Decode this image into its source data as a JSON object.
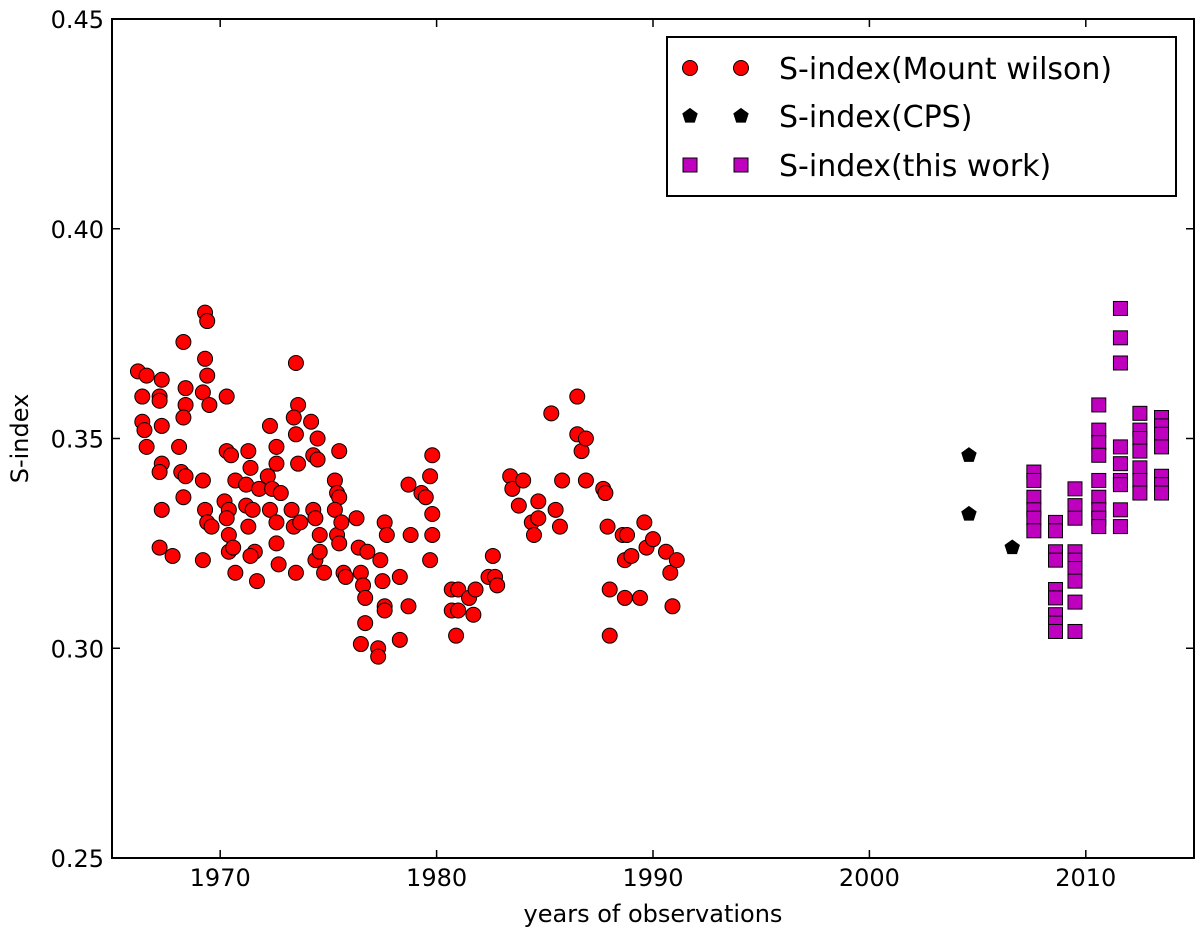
{
  "chart_data": {
    "type": "scatter",
    "title": "",
    "xlabel": "years of observations",
    "ylabel": "S-index",
    "xlim": [
      1965,
      2015
    ],
    "ylim": [
      0.25,
      0.45
    ],
    "xticks": [
      1970,
      1980,
      1990,
      2000,
      2010
    ],
    "xtick_labels": [
      "1970",
      "1980",
      "1990",
      "2000",
      "2010"
    ],
    "yticks": [
      0.25,
      0.3,
      0.35,
      0.4,
      0.45
    ],
    "ytick_labels": [
      "0.25",
      "0.30",
      "0.35",
      "0.40",
      "0.45"
    ],
    "grid": false,
    "legend_position": "top-right",
    "series": [
      {
        "name": "S-index(Mount wilson)",
        "marker": "circle",
        "color": "#ff0000",
        "points": [
          [
            1966.2,
            0.366
          ],
          [
            1966.4,
            0.36
          ],
          [
            1966.6,
            0.365
          ],
          [
            1966.4,
            0.354
          ],
          [
            1966.5,
            0.352
          ],
          [
            1966.6,
            0.348
          ],
          [
            1967.2,
            0.36
          ],
          [
            1967.2,
            0.359
          ],
          [
            1967.3,
            0.364
          ],
          [
            1967.3,
            0.353
          ],
          [
            1967.3,
            0.344
          ],
          [
            1967.2,
            0.342
          ],
          [
            1967.3,
            0.333
          ],
          [
            1967.2,
            0.324
          ],
          [
            1967.8,
            0.322
          ],
          [
            1968.1,
            0.348
          ],
          [
            1968.2,
            0.342
          ],
          [
            1968.4,
            0.341
          ],
          [
            1968.3,
            0.373
          ],
          [
            1968.4,
            0.362
          ],
          [
            1968.4,
            0.358
          ],
          [
            1968.3,
            0.355
          ],
          [
            1968.3,
            0.336
          ],
          [
            1969.2,
            0.34
          ],
          [
            1969.3,
            0.38
          ],
          [
            1969.4,
            0.378
          ],
          [
            1969.3,
            0.369
          ],
          [
            1969.4,
            0.365
          ],
          [
            1969.2,
            0.361
          ],
          [
            1969.5,
            0.358
          ],
          [
            1969.3,
            0.333
          ],
          [
            1969.4,
            0.33
          ],
          [
            1969.6,
            0.329
          ],
          [
            1969.2,
            0.321
          ],
          [
            1970.3,
            0.36
          ],
          [
            1970.3,
            0.347
          ],
          [
            1970.5,
            0.346
          ],
          [
            1970.2,
            0.335
          ],
          [
            1970.4,
            0.333
          ],
          [
            1970.3,
            0.331
          ],
          [
            1970.4,
            0.327
          ],
          [
            1970.4,
            0.323
          ],
          [
            1970.6,
            0.324
          ],
          [
            1970.7,
            0.318
          ],
          [
            1970.7,
            0.34
          ],
          [
            1971.3,
            0.347
          ],
          [
            1971.4,
            0.343
          ],
          [
            1971.2,
            0.339
          ],
          [
            1971.2,
            0.334
          ],
          [
            1971.3,
            0.329
          ],
          [
            1971.5,
            0.333
          ],
          [
            1971.6,
            0.323
          ],
          [
            1971.4,
            0.322
          ],
          [
            1971.8,
            0.338
          ],
          [
            1971.7,
            0.316
          ],
          [
            1972.3,
            0.353
          ],
          [
            1972.2,
            0.341
          ],
          [
            1972.4,
            0.338
          ],
          [
            1972.3,
            0.333
          ],
          [
            1972.6,
            0.348
          ],
          [
            1972.6,
            0.344
          ],
          [
            1972.6,
            0.33
          ],
          [
            1972.6,
            0.325
          ],
          [
            1972.7,
            0.32
          ],
          [
            1972.8,
            0.337
          ],
          [
            1973.3,
            0.333
          ],
          [
            1973.4,
            0.329
          ],
          [
            1973.5,
            0.351
          ],
          [
            1973.6,
            0.344
          ],
          [
            1973.5,
            0.368
          ],
          [
            1973.6,
            0.358
          ],
          [
            1973.4,
            0.355
          ],
          [
            1973.5,
            0.318
          ],
          [
            1973.7,
            0.33
          ],
          [
            1974.2,
            0.354
          ],
          [
            1974.3,
            0.346
          ],
          [
            1974.3,
            0.333
          ],
          [
            1974.4,
            0.331
          ],
          [
            1974.5,
            0.35
          ],
          [
            1974.5,
            0.345
          ],
          [
            1974.6,
            0.327
          ],
          [
            1974.4,
            0.321
          ],
          [
            1974.6,
            0.323
          ],
          [
            1974.8,
            0.318
          ],
          [
            1975.3,
            0.34
          ],
          [
            1975.4,
            0.337
          ],
          [
            1975.5,
            0.336
          ],
          [
            1975.3,
            0.333
          ],
          [
            1975.4,
            0.327
          ],
          [
            1975.6,
            0.33
          ],
          [
            1975.5,
            0.325
          ],
          [
            1975.5,
            0.347
          ],
          [
            1975.7,
            0.318
          ],
          [
            1975.8,
            0.317
          ],
          [
            1976.3,
            0.331
          ],
          [
            1976.4,
            0.324
          ],
          [
            1976.5,
            0.318
          ],
          [
            1976.6,
            0.315
          ],
          [
            1976.7,
            0.312
          ],
          [
            1976.5,
            0.301
          ],
          [
            1976.7,
            0.306
          ],
          [
            1976.8,
            0.323
          ],
          [
            1977.3,
            0.3
          ],
          [
            1977.3,
            0.298
          ],
          [
            1977.4,
            0.321
          ],
          [
            1977.5,
            0.316
          ],
          [
            1977.6,
            0.33
          ],
          [
            1977.6,
            0.31
          ],
          [
            1977.7,
            0.327
          ],
          [
            1977.6,
            0.309
          ],
          [
            1978.3,
            0.302
          ],
          [
            1978.3,
            0.317
          ],
          [
            1978.7,
            0.339
          ],
          [
            1978.8,
            0.327
          ],
          [
            1978.7,
            0.31
          ],
          [
            1979.3,
            0.337
          ],
          [
            1979.5,
            0.336
          ],
          [
            1979.8,
            0.346
          ],
          [
            1979.7,
            0.341
          ],
          [
            1979.8,
            0.332
          ],
          [
            1979.8,
            0.327
          ],
          [
            1979.7,
            0.321
          ],
          [
            1980.7,
            0.314
          ],
          [
            1980.7,
            0.309
          ],
          [
            1980.9,
            0.303
          ],
          [
            1981.0,
            0.309
          ],
          [
            1981.0,
            0.314
          ],
          [
            1981.5,
            0.312
          ],
          [
            1981.8,
            0.314
          ],
          [
            1981.7,
            0.308
          ],
          [
            1982.4,
            0.317
          ],
          [
            1982.6,
            0.322
          ],
          [
            1982.7,
            0.317
          ],
          [
            1982.8,
            0.315
          ],
          [
            1983.4,
            0.341
          ],
          [
            1983.5,
            0.338
          ],
          [
            1983.8,
            0.334
          ],
          [
            1984.0,
            0.34
          ],
          [
            1984.4,
            0.33
          ],
          [
            1984.5,
            0.327
          ],
          [
            1984.7,
            0.331
          ],
          [
            1984.7,
            0.335
          ],
          [
            1985.3,
            0.356
          ],
          [
            1985.5,
            0.333
          ],
          [
            1985.7,
            0.329
          ],
          [
            1985.8,
            0.34
          ],
          [
            1986.5,
            0.36
          ],
          [
            1986.5,
            0.351
          ],
          [
            1986.7,
            0.347
          ],
          [
            1986.9,
            0.35
          ],
          [
            1986.9,
            0.34
          ],
          [
            1987.7,
            0.338
          ],
          [
            1987.8,
            0.337
          ],
          [
            1987.9,
            0.329
          ],
          [
            1988.0,
            0.314
          ],
          [
            1988.0,
            0.303
          ],
          [
            1988.6,
            0.327
          ],
          [
            1988.7,
            0.312
          ],
          [
            1988.7,
            0.321
          ],
          [
            1988.8,
            0.327
          ],
          [
            1989.0,
            0.322
          ],
          [
            1989.4,
            0.312
          ],
          [
            1989.6,
            0.33
          ],
          [
            1989.7,
            0.324
          ],
          [
            1990.0,
            0.326
          ],
          [
            1990.6,
            0.323
          ],
          [
            1990.8,
            0.318
          ],
          [
            1990.9,
            0.31
          ],
          [
            1991.1,
            0.321
          ]
        ]
      },
      {
        "name": "S-index(CPS)",
        "marker": "pentagon",
        "color": "#000000",
        "points": [
          [
            2004.6,
            0.346
          ],
          [
            2004.6,
            0.332
          ],
          [
            2006.6,
            0.324
          ]
        ]
      },
      {
        "name": "S-index(this work)",
        "marker": "square",
        "color": "#bf00bf",
        "points": [
          [
            2007.6,
            0.342
          ],
          [
            2007.6,
            0.34
          ],
          [
            2007.6,
            0.336
          ],
          [
            2007.6,
            0.333
          ],
          [
            2007.6,
            0.331
          ],
          [
            2007.6,
            0.328
          ],
          [
            2008.6,
            0.33
          ],
          [
            2008.6,
            0.328
          ],
          [
            2008.6,
            0.323
          ],
          [
            2008.6,
            0.321
          ],
          [
            2008.6,
            0.314
          ],
          [
            2008.6,
            0.312
          ],
          [
            2008.6,
            0.308
          ],
          [
            2008.6,
            0.306
          ],
          [
            2008.6,
            0.304
          ],
          [
            2009.5,
            0.338
          ],
          [
            2009.5,
            0.334
          ],
          [
            2009.5,
            0.331
          ],
          [
            2009.5,
            0.323
          ],
          [
            2009.5,
            0.321
          ],
          [
            2009.5,
            0.319
          ],
          [
            2009.5,
            0.316
          ],
          [
            2009.5,
            0.311
          ],
          [
            2009.5,
            0.304
          ],
          [
            2010.6,
            0.358
          ],
          [
            2010.6,
            0.352
          ],
          [
            2010.6,
            0.349
          ],
          [
            2010.6,
            0.346
          ],
          [
            2010.6,
            0.34
          ],
          [
            2010.6,
            0.336
          ],
          [
            2010.6,
            0.333
          ],
          [
            2010.6,
            0.331
          ],
          [
            2010.6,
            0.329
          ],
          [
            2011.6,
            0.381
          ],
          [
            2011.6,
            0.374
          ],
          [
            2011.6,
            0.368
          ],
          [
            2011.6,
            0.348
          ],
          [
            2011.6,
            0.344
          ],
          [
            2011.6,
            0.34
          ],
          [
            2011.6,
            0.339
          ],
          [
            2011.6,
            0.333
          ],
          [
            2011.6,
            0.329
          ],
          [
            2012.5,
            0.356
          ],
          [
            2012.5,
            0.352
          ],
          [
            2012.5,
            0.35
          ],
          [
            2012.5,
            0.347
          ],
          [
            2012.5,
            0.343
          ],
          [
            2012.5,
            0.34
          ],
          [
            2012.5,
            0.337
          ],
          [
            2013.5,
            0.355
          ],
          [
            2013.5,
            0.353
          ],
          [
            2013.5,
            0.351
          ],
          [
            2013.5,
            0.348
          ],
          [
            2013.5,
            0.341
          ],
          [
            2013.5,
            0.339
          ],
          [
            2013.5,
            0.337
          ]
        ]
      }
    ]
  }
}
